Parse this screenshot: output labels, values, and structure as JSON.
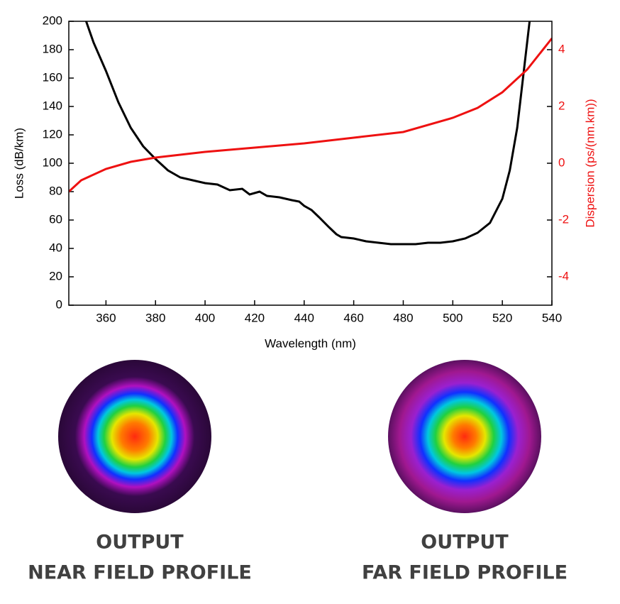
{
  "chart_data": {
    "type": "line",
    "xlabel": "Wavelength (nm)",
    "ylabel": "Loss (dB/km)",
    "y2label": "Dispersion (ps/(nm.km))",
    "xlim": [
      345,
      540
    ],
    "xticks": [
      360,
      380,
      400,
      420,
      440,
      460,
      480,
      500,
      520,
      540
    ],
    "ylim": [
      0,
      200
    ],
    "yticks": [
      0,
      20,
      40,
      60,
      80,
      100,
      120,
      140,
      160,
      180,
      200
    ],
    "y2lim": [
      -5,
      5
    ],
    "y2ticks": [
      -4,
      -2,
      0,
      2,
      4
    ],
    "series": [
      {
        "name": "Loss",
        "color": "#000000",
        "x": [
          352,
          355,
          360,
          365,
          370,
          375,
          380,
          385,
          390,
          395,
          400,
          405,
          410,
          415,
          418,
          422,
          425,
          430,
          435,
          438,
          440,
          443,
          446,
          450,
          453,
          455,
          460,
          465,
          470,
          475,
          480,
          485,
          490,
          495,
          500,
          505,
          510,
          515,
          520,
          523,
          526,
          528,
          530,
          531
        ],
        "values": [
          200,
          185,
          165,
          143,
          125,
          112,
          103,
          95,
          90,
          88,
          86,
          85,
          81,
          82,
          78,
          80,
          77,
          76,
          74,
          73,
          70,
          67,
          62,
          55,
          50,
          48,
          47,
          45,
          44,
          43,
          43,
          43,
          44,
          44,
          45,
          47,
          51,
          58,
          75,
          95,
          125,
          155,
          185,
          200
        ]
      },
      {
        "name": "Dispersion",
        "color": "#ee1111",
        "axis": "y2",
        "x": [
          345,
          350,
          360,
          370,
          380,
          390,
          400,
          420,
          440,
          460,
          480,
          500,
          510,
          520,
          530,
          540
        ],
        "values": [
          -1,
          -0.6,
          -0.2,
          0.05,
          0.2,
          0.3,
          0.4,
          0.55,
          0.7,
          0.9,
          1.1,
          1.6,
          1.95,
          2.5,
          3.3,
          4.4
        ]
      }
    ]
  },
  "profiles": [
    {
      "title": "OUTPUT",
      "subtitle": "NEAR FIELD PROFILE"
    },
    {
      "title": "OUTPUT",
      "subtitle": "FAR FIELD PROFILE"
    }
  ]
}
